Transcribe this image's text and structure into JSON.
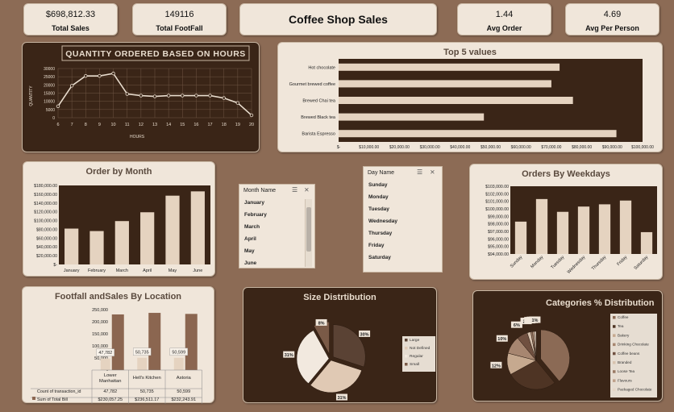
{
  "kpis": {
    "total_sales": {
      "value": "$698,812.33",
      "label": "Total Sales"
    },
    "total_footfall": {
      "value": "149116",
      "label": "Total FootFall"
    },
    "dashboard_title": "Coffee Shop Sales",
    "avg_order": {
      "value": "1.44",
      "label": "Avg Order"
    },
    "avg_per_person": {
      "value": "4.69",
      "label": "Avg Per Person"
    }
  },
  "colors": {
    "background": "#8c6b55",
    "dark_panel": "#3a2517",
    "light_panel": "#f0e6da",
    "bar": "#e5d3c0",
    "bar_dark": "#8b6650"
  },
  "slicers": {
    "month": {
      "header": "Month Name",
      "items": [
        "January",
        "February",
        "March",
        "April",
        "May",
        "June"
      ],
      "filter_icon": "multi-select-icon",
      "clear_icon": "clear-filter-icon"
    },
    "day": {
      "header": "Day Name",
      "items": [
        "Sunday",
        "Monday",
        "Tuesday",
        "Wednesday",
        "Thursday",
        "Friday",
        "Saturday"
      ],
      "filter_icon": "multi-select-icon",
      "clear_icon": "clear-filter-icon"
    }
  },
  "chart_data": [
    {
      "id": "hours",
      "type": "line",
      "title": "QUANTITY ORDERED BASED ON HOURS",
      "xlabel": "HOURS",
      "ylabel": "QUANTITY",
      "x": [
        6,
        7,
        8,
        9,
        10,
        11,
        12,
        13,
        14,
        15,
        16,
        17,
        18,
        19,
        20
      ],
      "values": [
        7000,
        19500,
        25500,
        25500,
        27000,
        14500,
        13500,
        13000,
        13500,
        13500,
        13500,
        13500,
        12000,
        9000,
        1500
      ],
      "yticks": [
        "0",
        "5000",
        "10000",
        "15000",
        "20000",
        "25000",
        "30000"
      ],
      "ylim": [
        0,
        30000
      ],
      "grid": true
    },
    {
      "id": "top5",
      "type": "bar",
      "orientation": "horizontal",
      "title": "Top 5 values",
      "categories": [
        "Hot chocolate",
        "Gourmet brewed coffee",
        "Brewed Chai tea",
        "Brewed Black tea",
        "Barista Espresso"
      ],
      "values": [
        72700,
        70000,
        77100,
        47800,
        91400
      ],
      "xticks": [
        "$-",
        "$10,000.00",
        "$20,000.00",
        "$30,000.00",
        "$40,000.00",
        "$50,000.00",
        "$60,000.00",
        "$70,000.00",
        "$80,000.00",
        "$90,000.00",
        "$100,000.00"
      ],
      "xlim": [
        0,
        100000
      ]
    },
    {
      "id": "month",
      "type": "bar",
      "title": "Order by Month",
      "categories": [
        "January",
        "February",
        "March",
        "April",
        "May",
        "June"
      ],
      "values": [
        81700,
        76100,
        98800,
        118900,
        156700,
        166500
      ],
      "yticks": [
        "$-",
        "$20,000.00",
        "$40,000.00",
        "$60,000.00",
        "$80,000.00",
        "$100,000.00",
        "$120,000.00",
        "$140,000.00",
        "$160,000.00",
        "$180,000.00"
      ],
      "ylim": [
        0,
        180000
      ]
    },
    {
      "id": "weekday",
      "type": "bar",
      "title": "Orders By Weekdays",
      "categories": [
        "Sunday",
        "Monday",
        "Tuesday",
        "Wednesday",
        "Thursday",
        "Friday",
        "Saturday"
      ],
      "values": [
        98300,
        101300,
        99600,
        100300,
        100600,
        101100,
        96900
      ],
      "yticks": [
        "$94,000.00",
        "$95,000.00",
        "$96,000.00",
        "$97,000.00",
        "$98,000.00",
        "$99,000.00",
        "$100,000.00",
        "$101,000.00",
        "$102,000.00",
        "$103,000.00"
      ],
      "ylim": [
        94000,
        103000
      ]
    },
    {
      "id": "location",
      "type": "bar",
      "title": "Footfall andSales By Location",
      "categories": [
        "Lower Manhattan",
        "Hell's Kitchen",
        "Astoria"
      ],
      "series": [
        {
          "name": "Count of transaction_id",
          "values": [
            47782,
            50735,
            50599
          ],
          "labels": [
            "47,782",
            "50,735",
            "50,599"
          ]
        },
        {
          "name": "Sum of Total Bill",
          "values": [
            230057.25,
            236511.17,
            232243.91
          ],
          "labels": [
            "$230,057.25",
            "$236,511.17",
            "$232,243.91"
          ]
        }
      ],
      "yticks": [
        "-",
        "50,000",
        "100,000",
        "150,000",
        "200,000",
        "250,000"
      ],
      "ylim": [
        0,
        250000
      ]
    },
    {
      "id": "size",
      "type": "pie",
      "title": "Size Distrtibution",
      "categories": [
        "Large",
        "Not Defined",
        "Regular",
        "Small"
      ],
      "values": [
        30,
        31,
        31,
        8
      ],
      "labels": [
        "30%",
        "31%",
        "31%",
        "8%"
      ],
      "legend": "right"
    },
    {
      "id": "category",
      "type": "pie",
      "title": "Categories % Distribution",
      "categories": [
        "Coffee",
        "Tea",
        "Bakery",
        "Drinking Chocolate",
        "Coffee beans",
        "Branded",
        "Loose Tea",
        "Flavours",
        "Packaged Chocolate"
      ],
      "values": [
        39,
        28,
        12,
        10,
        6,
        2,
        1,
        1,
        1
      ],
      "labels": [
        "",
        "",
        "12%",
        "10%",
        "6%",
        "2%",
        "1%",
        "1%",
        "1%"
      ],
      "legend": "right"
    }
  ]
}
